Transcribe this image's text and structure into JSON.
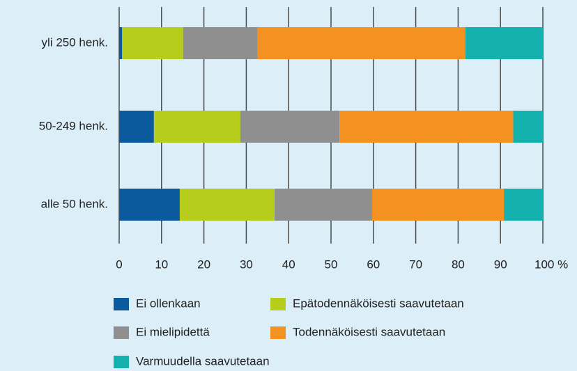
{
  "chart_data": {
    "type": "stacked-barh",
    "categories": [
      "yli 250 henk.",
      "50-249 henk.",
      "alle 50 henk."
    ],
    "series": [
      {
        "name": "Ei ollenkaan",
        "color": "#0b5a9d",
        "values": [
          0.7,
          8.2,
          14.3
        ]
      },
      {
        "name": "Epätodennäköisesti saavutetaan",
        "color": "#b7cd1c",
        "values": [
          14.4,
          20.4,
          22.4
        ]
      },
      {
        "name": "Ei mielipidettä",
        "color": "#8f8f8f",
        "values": [
          17.6,
          23.4,
          23
        ]
      },
      {
        "name": "Todennäköisesti saavutetaan",
        "color": "#f39220",
        "values": [
          49,
          41,
          31.1
        ]
      },
      {
        "name": "Varmuudella saavutetaan",
        "color": "#14b1ae",
        "values": [
          18.3,
          7,
          9.2
        ]
      }
    ],
    "xlim": [
      0,
      100
    ],
    "xticks": [
      0,
      10,
      20,
      30,
      40,
      50,
      60,
      70,
      80,
      90,
      {
        "value": 100,
        "label": "100 %"
      }
    ],
    "grid": true
  }
}
